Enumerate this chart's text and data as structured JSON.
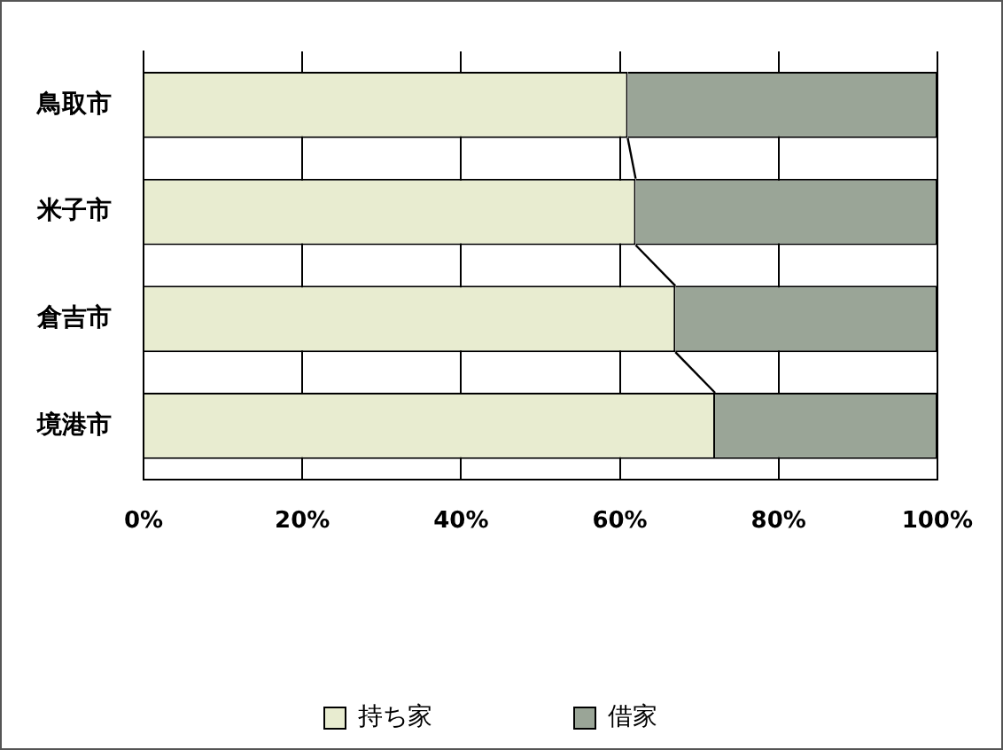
{
  "chart_data": {
    "type": "bar",
    "orientation": "horizontal",
    "stacked": true,
    "categories": [
      "鳥取市",
      "米子市",
      "倉吉市",
      "境港市"
    ],
    "series": [
      {
        "name": "持ち家",
        "color": "#e8ecd0",
        "values": [
          61,
          62,
          67,
          72
        ]
      },
      {
        "name": "借家",
        "color": "#9aa597",
        "values": [
          39,
          38,
          33,
          28
        ]
      }
    ],
    "xlim": [
      0,
      100
    ],
    "xticks": [
      {
        "value": 0,
        "label": "0%"
      },
      {
        "value": 20,
        "label": "20%"
      },
      {
        "value": 40,
        "label": "40%"
      },
      {
        "value": 60,
        "label": "60%"
      },
      {
        "value": 80,
        "label": "80%"
      },
      {
        "value": 100,
        "label": "100%"
      }
    ],
    "grid": "x",
    "legend": "bottom"
  }
}
